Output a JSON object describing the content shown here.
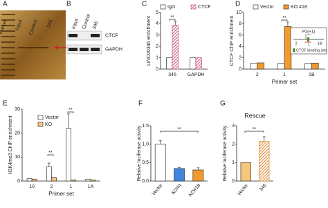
{
  "gel_panels": [
    {
      "label": "A",
      "lanes": [
        "Marker",
        "Input",
        "Control",
        "346"
      ]
    },
    {
      "label": "B",
      "lanes": [
        "Input",
        "Control",
        "346"
      ],
      "rows": [
        "CTCF",
        "GAPDH"
      ]
    }
  ],
  "chart_data": [
    {
      "type": "bar",
      "label": "C",
      "ylabel": "LINC00346 enrichment",
      "categories": [
        "346",
        "GAPDH"
      ],
      "legend": "top",
      "series": [
        {
          "name": "IgG",
          "color": "#ffffff",
          "hatch": false,
          "values": [
            1,
            1
          ],
          "errors": [
            null,
            null
          ]
        },
        {
          "name": "CTCF",
          "color": "#c9507f",
          "hatch": true,
          "values": [
            3.85,
            1
          ],
          "errors": [
            0.35,
            null
          ]
        }
      ],
      "ylim": [
        0,
        5
      ],
      "yticks": [
        0,
        1,
        2,
        3,
        4,
        5
      ],
      "annotations": [
        "**"
      ]
    },
    {
      "type": "bar",
      "label": "D",
      "ylabel": "CTCF ChIP enrichment",
      "xlabel": "Primer set",
      "categories": [
        "2",
        "1",
        "1B"
      ],
      "legend": "top",
      "series": [
        {
          "name": "Vector",
          "color": "#ffffff",
          "hatch": false,
          "values": [
            1,
            1,
            1
          ],
          "errors": [
            null,
            null,
            null
          ]
        },
        {
          "name": "KO #18",
          "color": "#f39a2c",
          "hatch": false,
          "values": [
            1.1,
            7.5,
            1.05
          ],
          "errors": [
            null,
            0.8,
            null
          ]
        }
      ],
      "ylim": [
        0,
        10
      ],
      "yticks": [
        0,
        2,
        4,
        6,
        8,
        10
      ],
      "annotations": [
        "**"
      ],
      "inset": {
        "texts": [
          "P2(+1)",
          "2",
          "1",
          "1B"
        ],
        "key": "CTCF binding site"
      }
    },
    {
      "type": "bar",
      "label": "E",
      "ylabel": "H3K4me3 ChIP enrichment",
      "xlabel": "Primer set",
      "categories": [
        "10",
        "2",
        "1",
        "1A"
      ],
      "legend": "upper left",
      "series": [
        {
          "name": "Vector",
          "color": "#ffffff",
          "hatch": false,
          "values": [
            1,
            6,
            22,
            0.8
          ],
          "errors": [
            null,
            1.5,
            6,
            null
          ]
        },
        {
          "name": "KO",
          "color": "#f6c77a",
          "hatch": false,
          "values": [
            0.8,
            1.5,
            0.5,
            0.5
          ],
          "errors": [
            null,
            null,
            null,
            null
          ]
        }
      ],
      "ylim": [
        0,
        30
      ],
      "yticks": [
        0,
        10,
        20,
        30
      ],
      "annotations": [
        "**",
        "**"
      ]
    },
    {
      "type": "bar",
      "label": "F",
      "ylabel": "Relative luciferase activity",
      "categories": [
        "Vector",
        "KO#4",
        "KO#18"
      ],
      "rotate_xticks": true,
      "values": [
        1.0,
        0.34,
        0.3
      ],
      "errors": [
        0.1,
        0.03,
        0.06
      ],
      "colors": [
        "#ffffff",
        "#3f86e0",
        "#f39a2c"
      ],
      "hatches": [
        false,
        false,
        false
      ],
      "ylim": [
        0,
        1.5
      ],
      "yticks": [
        {
          "value": 0,
          "label": "0.0"
        },
        {
          "value": 0.5,
          "label": "0.5"
        },
        {
          "value": 1,
          "label": "1.0"
        },
        {
          "value": 1.5,
          "label": "1.5"
        }
      ],
      "annotations": [
        "**"
      ]
    },
    {
      "type": "bar",
      "label": "G",
      "title": "Rescue",
      "ylabel": "Relative luciferase activity",
      "categories": [
        "Vector",
        "346"
      ],
      "rotate_xticks": true,
      "values": [
        1,
        2.15
      ],
      "errors": [
        null,
        0.25
      ],
      "colors": [
        "#f6c77a",
        "#e0862a"
      ],
      "hatches": [
        false,
        true
      ],
      "ylim": [
        0,
        3
      ],
      "yticks": [
        0,
        1,
        2,
        3
      ],
      "annotations": [
        "**"
      ]
    }
  ]
}
